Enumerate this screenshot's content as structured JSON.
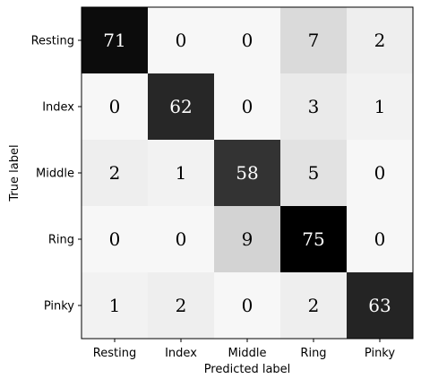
{
  "chart_data": {
    "type": "heatmap",
    "title": "",
    "xlabel": "Predicted label",
    "ylabel": "True label",
    "x_categories": [
      "Resting",
      "Index",
      "Middle",
      "Ring",
      "Pinky"
    ],
    "y_categories": [
      "Resting",
      "Index",
      "Middle",
      "Ring",
      "Pinky"
    ],
    "values": [
      [
        71,
        0,
        0,
        7,
        2
      ],
      [
        0,
        62,
        0,
        3,
        1
      ],
      [
        2,
        1,
        58,
        5,
        0
      ],
      [
        0,
        0,
        9,
        75,
        0
      ],
      [
        1,
        2,
        0,
        2,
        63
      ]
    ],
    "value_range": [
      0,
      75
    ],
    "colormap": "greys",
    "low_color": "#ffffff",
    "high_color": "#000000",
    "grid": false,
    "legend": "none"
  }
}
